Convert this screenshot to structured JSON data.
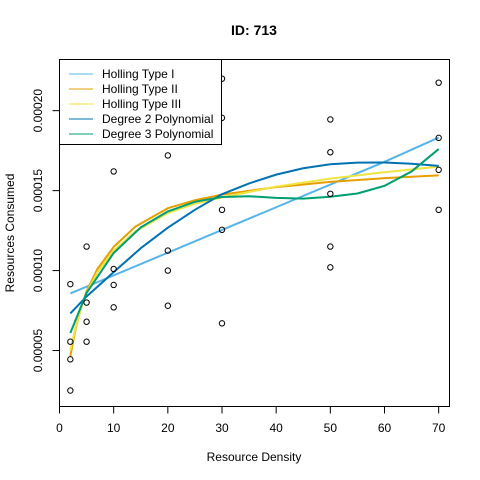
{
  "chart_data": {
    "type": "scatter",
    "title": "ID: 713",
    "xlabel": "Resource Density",
    "ylabel": "Resources Consumed",
    "xlim": [
      0,
      72
    ],
    "ylim": [
      1.5e-05,
      0.000232
    ],
    "xticks": [
      0,
      10,
      20,
      30,
      40,
      50,
      60,
      70
    ],
    "xtick_labels": [
      "0",
      "10",
      "20",
      "30",
      "40",
      "50",
      "60",
      "70"
    ],
    "yticks": [
      5e-05,
      0.0001,
      0.00015,
      0.0002
    ],
    "ytick_labels": [
      "0.00005",
      "0.00010",
      "0.00015",
      "0.00020"
    ],
    "grid": false,
    "legend_position": "top-left",
    "points": {
      "x": [
        2,
        2,
        2,
        2,
        5,
        5,
        5,
        5,
        10,
        10,
        10,
        10,
        20,
        20,
        20,
        20,
        30,
        30,
        30,
        30,
        30,
        50,
        50,
        50,
        50,
        50,
        70,
        70,
        70,
        70
      ],
      "y": [
        9.15e-05,
        5.55e-05,
        4.45e-05,
        2.5e-05,
        0.000115,
        8e-05,
        6.8e-05,
        5.55e-05,
        0.000162,
        0.000101,
        9.1e-05,
        7.7e-05,
        0.000172,
        0.0001125,
        0.0001,
        7.8e-05,
        0.00022,
        0.0001955,
        0.000138,
        0.0001255,
        6.7e-05,
        0.0001945,
        0.000174,
        0.000148,
        0.000115,
        0.000102,
        0.0002175,
        0.000183,
        0.000163,
        0.000138
      ]
    },
    "series": [
      {
        "name": "Holling Type I",
        "color": "#56B4E9",
        "x": [
          2,
          10,
          20,
          30,
          40,
          50,
          60,
          70
        ],
        "y": [
          8.57e-05,
          9.7e-05,
          0.0001112,
          0.0001254,
          0.0001396,
          0.0001538,
          0.000168,
          0.0001832
        ]
      },
      {
        "name": "Holling Type II",
        "color": "#E69F00",
        "x": [
          2,
          3,
          4,
          5,
          7,
          10,
          14,
          20,
          25,
          30,
          40,
          50,
          60,
          70
        ],
        "y": [
          4.65e-05,
          6.4e-05,
          7.7e-05,
          8.7e-05,
          0.000101,
          0.0001148,
          0.0001275,
          0.000139,
          0.000144,
          0.0001475,
          0.0001522,
          0.0001555,
          0.0001578,
          0.0001595
        ]
      },
      {
        "name": "Holling Type III",
        "color": "#F0E442",
        "x": [
          2,
          3,
          4,
          5,
          7,
          10,
          14,
          20,
          25,
          30,
          40,
          50,
          60,
          70
        ],
        "y": [
          5e-05,
          6.5e-05,
          7.65e-05,
          8.6e-05,
          9.9e-05,
          0.0001125,
          0.0001245,
          0.000136,
          0.0001418,
          0.0001458,
          0.0001525,
          0.0001575,
          0.0001615,
          0.000165
        ]
      },
      {
        "name": "Degree 2 Polynomial",
        "color": "#0072B2",
        "x": [
          2,
          5,
          10,
          15,
          20,
          25,
          30,
          35,
          40,
          45,
          50,
          55,
          60,
          65,
          70
        ],
        "y": [
          7.32e-05,
          8.38e-05,
          9.9e-05,
          0.000114,
          0.0001268,
          0.000138,
          0.0001478,
          0.0001545,
          0.00016,
          0.000164,
          0.0001665,
          0.0001675,
          0.0001676,
          0.0001668,
          0.0001655
        ]
      },
      {
        "name": "Degree 3 Polynomial",
        "color": "#009E73",
        "x": [
          2,
          5,
          10,
          15,
          20,
          25,
          30,
          35,
          40,
          45,
          50,
          55,
          60,
          65,
          70
        ],
        "y": [
          6.1e-05,
          8.6e-05,
          0.000111,
          0.000127,
          0.000137,
          0.000143,
          0.000146,
          0.0001465,
          0.0001455,
          0.000145,
          0.0001462,
          0.0001482,
          0.000153,
          0.000162,
          0.000176
        ]
      }
    ]
  }
}
